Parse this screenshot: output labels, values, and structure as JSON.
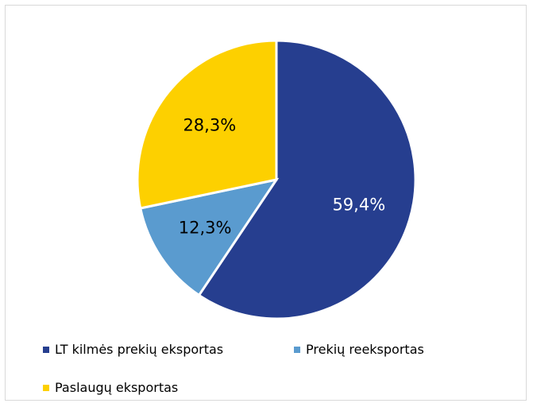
{
  "chart_data": {
    "type": "pie",
    "slices": [
      {
        "name": "LT kilmės prekių eksportas",
        "value": 59.4,
        "label": "59,4%",
        "color": "#263e8f"
      },
      {
        "name": "Prekių reeksportas",
        "value": 12.3,
        "label": "12,3%",
        "color": "#5a9bcf"
      },
      {
        "name": "Paslaugų eksportas",
        "value": 28.3,
        "label": "28,3%",
        "color": "#fdd000"
      }
    ],
    "start": "12 o'clock",
    "direction": "clockwise",
    "legend_position": "bottom",
    "label_colors": [
      "#ffffff",
      "#000000",
      "#000000"
    ]
  }
}
